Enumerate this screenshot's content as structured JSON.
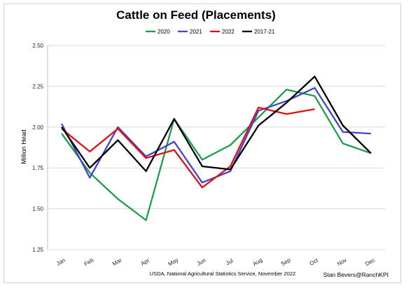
{
  "chart_data": {
    "type": "line",
    "title": "Cattle on Feed (Placements)",
    "xlabel": "",
    "ylabel": "Million Head",
    "categories": [
      "Jan",
      "Feb",
      "Mar",
      "Apr",
      "May",
      "Jun",
      "Jul",
      "Aug",
      "Sep",
      "Oct",
      "Nov",
      "Dec"
    ],
    "ylim": [
      1.25,
      2.5
    ],
    "yticks": [
      "1.25",
      "1.50",
      "1.75",
      "2.00",
      "2.25",
      "2.50"
    ],
    "grid": "horizontal",
    "legend": "top",
    "series": [
      {
        "name": "2020",
        "color": "#1a9e4a",
        "values": [
          1.96,
          1.72,
          1.56,
          1.43,
          2.05,
          1.8,
          1.89,
          2.06,
          2.23,
          2.19,
          1.9,
          1.84
        ]
      },
      {
        "name": "2021",
        "color": "#4444cc",
        "values": [
          2.02,
          1.69,
          2.0,
          1.82,
          1.91,
          1.66,
          1.73,
          2.1,
          2.16,
          2.24,
          1.97,
          1.96
        ]
      },
      {
        "name": "2022",
        "color": "#dd1111",
        "values": [
          1.99,
          1.85,
          1.99,
          1.81,
          1.86,
          1.63,
          1.76,
          2.12,
          2.08,
          2.11,
          null,
          null
        ]
      },
      {
        "name": "2017-21",
        "color": "#000000",
        "values": [
          2.0,
          1.75,
          1.92,
          1.73,
          2.05,
          1.76,
          1.74,
          2.01,
          2.15,
          2.31,
          2.01,
          1.84
        ]
      }
    ]
  },
  "footer": {
    "source": "USDA, National Agricultural Statistics Service, November 2022",
    "credit": "Stan Bevers@RanchKPI"
  }
}
